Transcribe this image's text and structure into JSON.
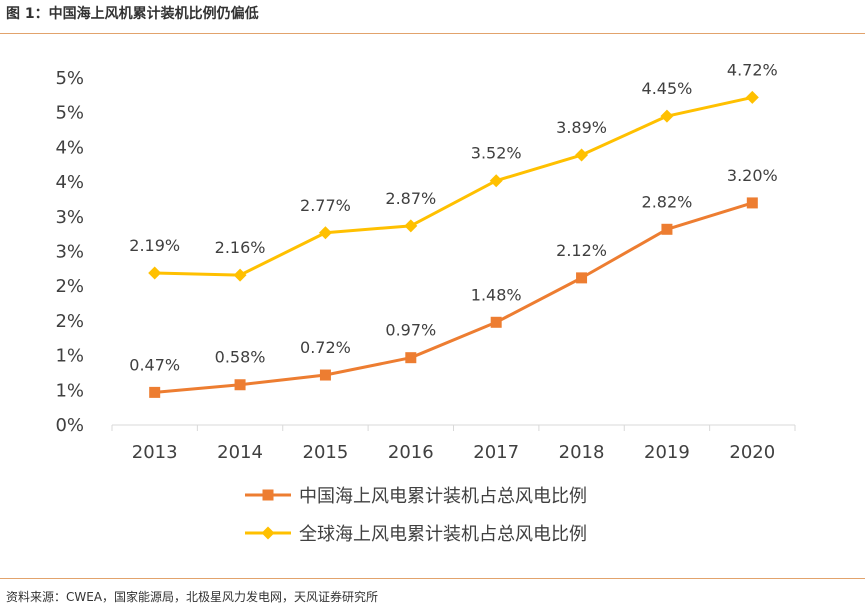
{
  "figure": {
    "title": "图 1：中国海上风机累计装机比例仍偏低",
    "source": "资料来源：CWEA，国家能源局，北极星风力发电网，天风证券研究所"
  },
  "colors": {
    "china": "#ED7D31",
    "global": "#FFC000",
    "rule": "#E2A36C",
    "axis": "#D9D9D9",
    "text": "#404040"
  },
  "chart_data": {
    "type": "line",
    "title": "中国海上风机累计装机比例仍偏低",
    "xlabel": "",
    "ylabel": "",
    "categories": [
      "2013",
      "2014",
      "2015",
      "2016",
      "2017",
      "2018",
      "2019",
      "2020"
    ],
    "y_tick_labels": [
      "0%",
      "1%",
      "1%",
      "2%",
      "2%",
      "3%",
      "3%",
      "4%",
      "4%",
      "5%",
      "5%"
    ],
    "ylim": [
      0,
      5
    ],
    "series": [
      {
        "name": "中国海上风电累计装机占总风电比例",
        "marker": "square",
        "color": "#ED7D31",
        "values": [
          0.47,
          0.58,
          0.72,
          0.97,
          1.48,
          2.12,
          2.82,
          3.2
        ],
        "labels": [
          "0.47%",
          "0.58%",
          "0.72%",
          "0.97%",
          "1.48%",
          "2.12%",
          "2.82%",
          "3.20%"
        ]
      },
      {
        "name": "全球海上风电累计装机占总风电比例",
        "marker": "diamond",
        "color": "#FFC000",
        "values": [
          2.19,
          2.16,
          2.77,
          2.87,
          3.52,
          3.89,
          4.45,
          4.72
        ],
        "labels": [
          "2.19%",
          "2.16%",
          "2.77%",
          "2.87%",
          "3.52%",
          "3.89%",
          "4.45%",
          "4.72%"
        ]
      }
    ],
    "legend_position": "bottom",
    "grid": false
  }
}
